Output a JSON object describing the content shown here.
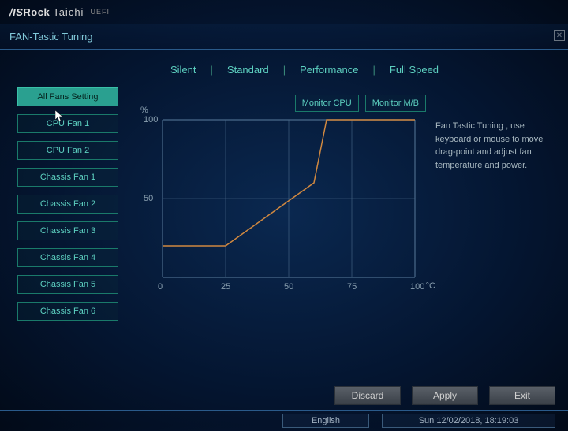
{
  "header": {
    "brand_as": "/IS",
    "brand_rock": "Rock",
    "taichi": "Taichi",
    "uefi": "UEFI"
  },
  "title": "FAN-Tastic Tuning",
  "sidebar": {
    "items": [
      {
        "label": "All Fans Setting",
        "active": true
      },
      {
        "label": "CPU Fan 1",
        "active": false
      },
      {
        "label": "CPU Fan 2",
        "active": false
      },
      {
        "label": "Chassis Fan 1",
        "active": false
      },
      {
        "label": "Chassis Fan 2",
        "active": false
      },
      {
        "label": "Chassis Fan 3",
        "active": false
      },
      {
        "label": "Chassis Fan 4",
        "active": false
      },
      {
        "label": "Chassis Fan 5",
        "active": false
      },
      {
        "label": "Chassis Fan 6",
        "active": false
      }
    ]
  },
  "presets": [
    "Silent",
    "Standard",
    "Performance",
    "Full Speed"
  ],
  "monitor": {
    "cpu": "Monitor CPU",
    "mb": "Monitor M/B"
  },
  "chart": {
    "type": "line",
    "x_axis_label": "°C",
    "y_axis_label": "%",
    "xlim": [
      0,
      100
    ],
    "ylim": [
      0,
      100
    ],
    "x_ticks": [
      0,
      25,
      50,
      75,
      100
    ],
    "y_ticks": [
      50,
      100
    ],
    "grid_color": "#4a6a8a",
    "line_color": "#d08840",
    "line_width": 1.5,
    "background": "transparent",
    "axis_color": "#8aa0b0",
    "tick_fontsize": 11,
    "points": [
      {
        "x": 0,
        "y": 20
      },
      {
        "x": 25,
        "y": 20
      },
      {
        "x": 60,
        "y": 60
      },
      {
        "x": 65,
        "y": 100
      },
      {
        "x": 100,
        "y": 100
      }
    ]
  },
  "help_text": "Fan Tastic Tuning , use keyboard or mouse to move drag-point and adjust fan temperature and power.",
  "actions": {
    "discard": "Discard",
    "apply": "Apply",
    "exit": "Exit"
  },
  "status": {
    "language": "English",
    "datetime": "Sun 12/02/2018, 18:19:03"
  }
}
